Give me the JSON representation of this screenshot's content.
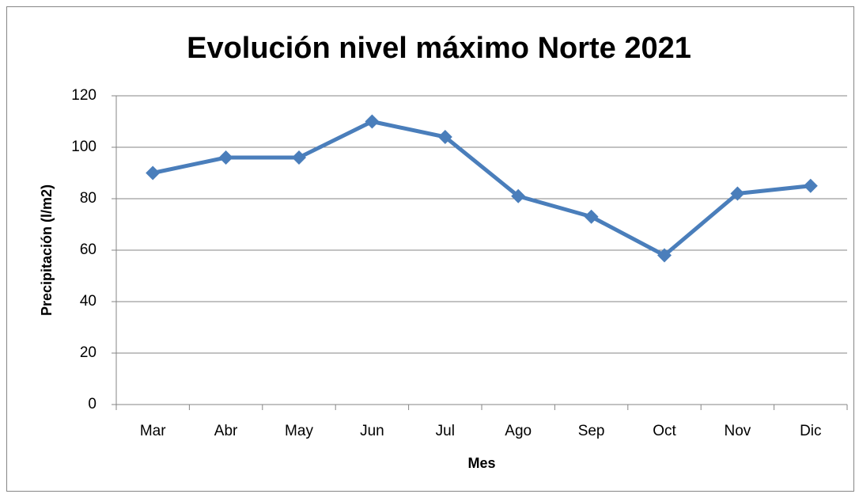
{
  "chart_data": {
    "type": "line",
    "title": "Evolución nivel máximo Norte 2021",
    "x_label": "Mes",
    "y_label": "Precipitación (l/m2)",
    "categories": [
      "Mar",
      "Abr",
      "May",
      "Jun",
      "Jul",
      "Ago",
      "Sep",
      "Oct",
      "Nov",
      "Dic"
    ],
    "series": [
      {
        "name": "Norte",
        "color": "#4a7ebb",
        "values": [
          90,
          96,
          96,
          110,
          104,
          81,
          73,
          58,
          82,
          85
        ]
      }
    ],
    "ylim": [
      0,
      120
    ],
    "yticks": [
      0,
      20,
      40,
      60,
      80,
      100,
      120
    ],
    "grid": true
  }
}
